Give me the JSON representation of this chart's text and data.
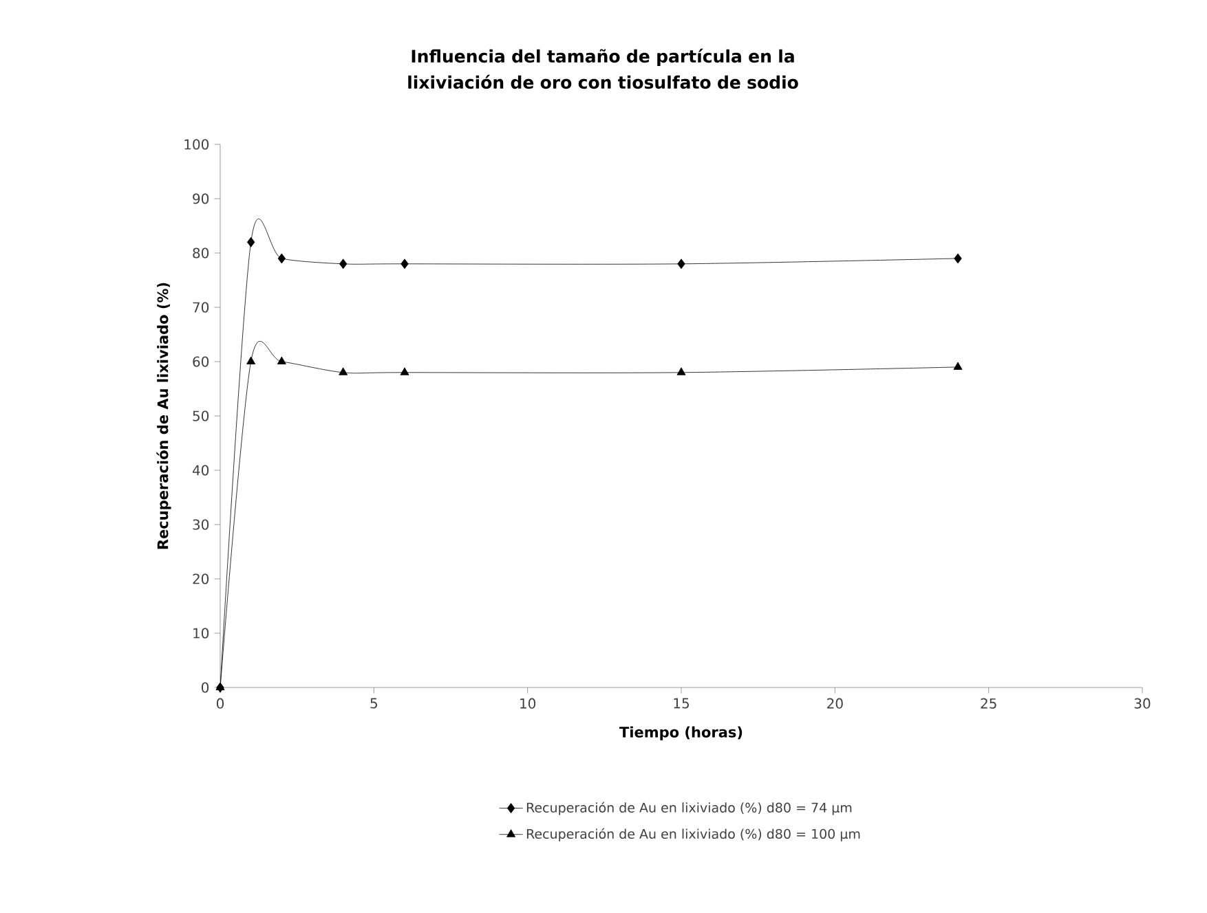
{
  "chart_data": {
    "type": "line",
    "title": "Influencia del tamaño de partícula en la lixiviación de oro con tiosulfato de sodio",
    "xlabel": "Tiempo (horas)",
    "ylabel": "Recuperación de Au lixiviado  (%)",
    "x": [
      0,
      1,
      2,
      4,
      6,
      15,
      24
    ],
    "series": [
      {
        "name": "Recuperación de Au en lixiviado (%)  d80 =  74 µm",
        "color": "#000000",
        "marker": "diamond",
        "values": [
          0,
          82,
          79,
          78,
          78,
          78,
          79
        ]
      },
      {
        "name": "Recuperación de Au en lixiviado (%)  d80 = 100 µm",
        "color": "#000000",
        "marker": "triangle",
        "values": [
          0,
          60,
          60,
          58,
          58,
          58,
          59
        ]
      }
    ],
    "xlim": [
      0,
      30
    ],
    "xticks": [
      0,
      5,
      10,
      15,
      20,
      25,
      30
    ],
    "ylim": [
      0,
      100
    ],
    "yticks": [
      0,
      10,
      20,
      30,
      40,
      50,
      60,
      70,
      80,
      90,
      100
    ],
    "grid": false,
    "legend": "bottom",
    "line_style": "solid"
  }
}
